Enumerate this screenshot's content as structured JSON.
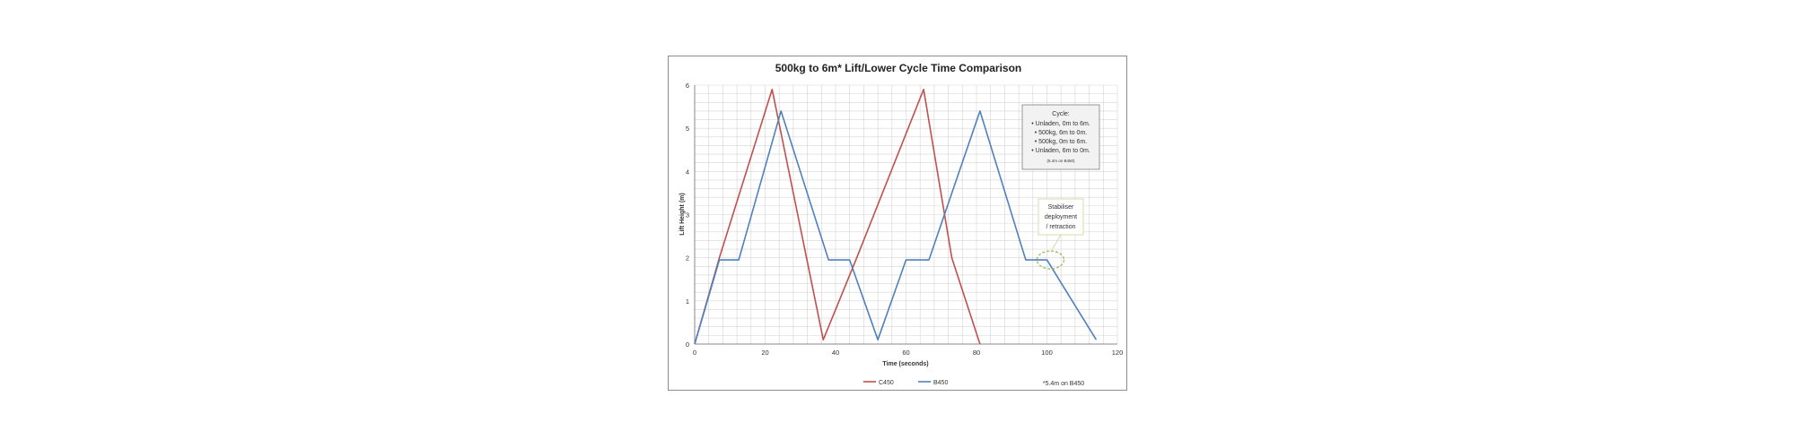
{
  "chart_data": {
    "type": "line",
    "title": "500kg to 6m* Lift/Lower Cycle Time Comparison",
    "xlabel": "Time (seconds)",
    "ylabel": "Lift Height (m)",
    "xlim": [
      0,
      120
    ],
    "ylim": [
      0,
      6
    ],
    "x_ticks": [
      "0",
      "20",
      "40",
      "60",
      "80",
      "100",
      "120"
    ],
    "y_ticks": [
      "0",
      "1",
      "2",
      "3",
      "4",
      "5",
      "6"
    ],
    "grid": true,
    "legend_position": "bottom",
    "colors": {
      "C450": "#c0504d",
      "B450": "#4f81bd",
      "annotation": "#9bbb59"
    },
    "series": [
      {
        "name": "C450",
        "x": [
          0,
          7,
          22,
          36.5,
          46,
          65,
          73,
          81
        ],
        "y": [
          0,
          2,
          5.9,
          0.1,
          2,
          5.9,
          2,
          0
        ]
      },
      {
        "name": "B450",
        "x": [
          0,
          7,
          12.5,
          24.5,
          38,
          44,
          52,
          60,
          66.5,
          81,
          94,
          100,
          114
        ],
        "y": [
          0,
          1.95,
          1.95,
          5.4,
          1.95,
          1.95,
          0.1,
          1.95,
          1.95,
          5.4,
          1.95,
          1.95,
          0.1
        ]
      }
    ],
    "cycle_box": {
      "heading": "Cycle:",
      "lines": [
        "• Unladen, 0m to 6m.",
        "• 500kg, 6m to 0m.",
        "• 500kg, 0m to 6m.",
        "• Unladen, 6m to 0m."
      ],
      "footnote": "(5.4m on B450)"
    },
    "callout": {
      "lines": [
        "Stabiliser",
        "deployment",
        "/ retraction"
      ],
      "target_x": 101,
      "target_y": 1.95
    },
    "note": "*5.4m on B450"
  }
}
